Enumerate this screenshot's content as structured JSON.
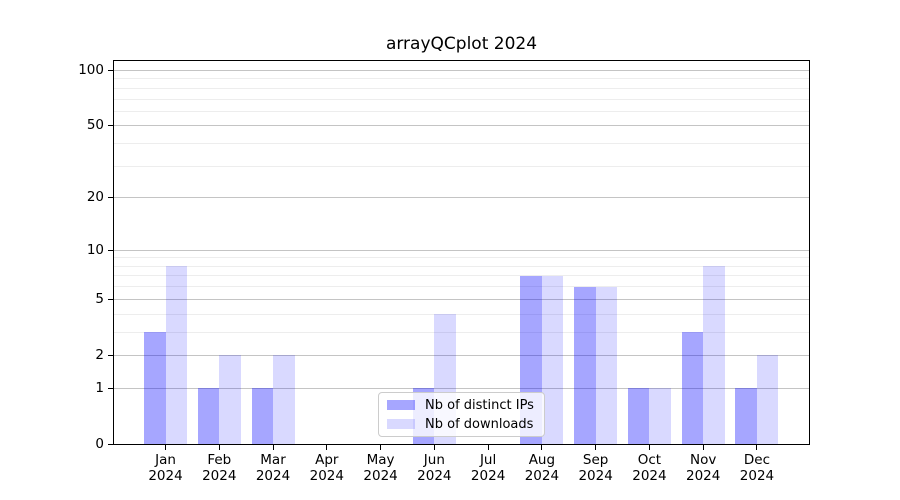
{
  "title": "arrayQCplot 2024",
  "chart_data": {
    "type": "bar",
    "title": "arrayQCplot 2024",
    "x_categories": [
      "Jan",
      "Feb",
      "Mar",
      "Apr",
      "May",
      "Jun",
      "Jul",
      "Aug",
      "Sep",
      "Oct",
      "Nov",
      "Dec"
    ],
    "x_year_label": "2024",
    "series": [
      {
        "name": "Nb of distinct IPs",
        "color": "#0000ff",
        "alpha": 0.35,
        "color_on_white": "#a6a6ff",
        "values": [
          3,
          1,
          1,
          0,
          0,
          1,
          0,
          7,
          6,
          1,
          3,
          1
        ]
      },
      {
        "name": "Nb of downloads",
        "color": "#0000ff",
        "alpha": 0.15,
        "color_on_white": "#d9d9ff",
        "values": [
          8,
          2,
          2,
          0,
          0,
          4,
          0,
          7,
          6,
          1,
          8,
          2
        ]
      }
    ],
    "y_axis": {
      "scale": "log1p",
      "ticks": [
        0,
        1,
        2,
        5,
        10,
        20,
        50,
        100
      ],
      "minor_gridlines": [
        3,
        4,
        6,
        7,
        8,
        9,
        30,
        40,
        60,
        70,
        80,
        90
      ],
      "lim": [
        0,
        114
      ]
    },
    "grid": {
      "on": true,
      "major_color": "#c4c4c4",
      "minor_color": "#ededed"
    },
    "legend": {
      "position": "lower center",
      "labels": [
        "Nb of distinct IPs",
        "Nb of downloads"
      ]
    }
  }
}
